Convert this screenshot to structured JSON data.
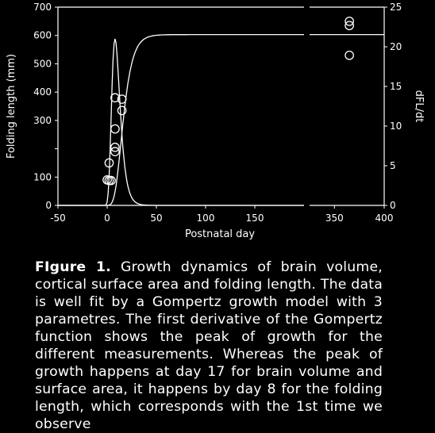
{
  "chart_data": {
    "type": "scatter",
    "xlabel": "Postnatal day",
    "ylabel_left": "Folding length (mm)",
    "ylabel_right": "dFL/dt",
    "xlim_left_panel": [
      -50,
      200
    ],
    "xlim_right_panel": [
      325,
      400
    ],
    "ylim_left": [
      0,
      700
    ],
    "ylim_right": [
      0,
      25
    ],
    "x_ticks_left": [
      "-50",
      "0",
      "50",
      "100",
      "150"
    ],
    "x_ticks_right": [
      "350",
      "400"
    ],
    "y_ticks_left": [
      "0",
      "100",
      "",
      "300",
      "400",
      "500",
      "600",
      "700"
    ],
    "y_ticks_right": [
      "0",
      "5",
      "10",
      "15",
      "20",
      "25"
    ],
    "series": [
      {
        "marker": "circle",
        "x": [
          0,
          2,
          2,
          4,
          8,
          8,
          8,
          8,
          15,
          15,
          365,
          365,
          365
        ],
        "y": [
          90,
          88,
          150,
          88,
          190,
          205,
          270,
          380,
          335,
          375,
          530,
          635,
          650
        ]
      }
    ],
    "curves": {
      "folding_length_gompertz": {
        "axis": "left",
        "asymptote": 603,
        "onset_day": -10,
        "plateau_day": 70
      },
      "derivative_peak": {
        "axis": "right",
        "peak_day": 8,
        "peak_value": 21
      }
    }
  },
  "caption": {
    "label": "FIgure 1.",
    "text": " Growth dynamics of brain volume, cortical surface area and folding length. The data is well fit by a Gompertz growth model with 3 parametres. The first derivative of the Gompertz function shows the peak of growth for the different measurements. Whereas the peak of growth happens at day 17 for brain volume and surface area, it happens by day 8 for the folding length, which corresponds with the 1st time we observe"
  }
}
